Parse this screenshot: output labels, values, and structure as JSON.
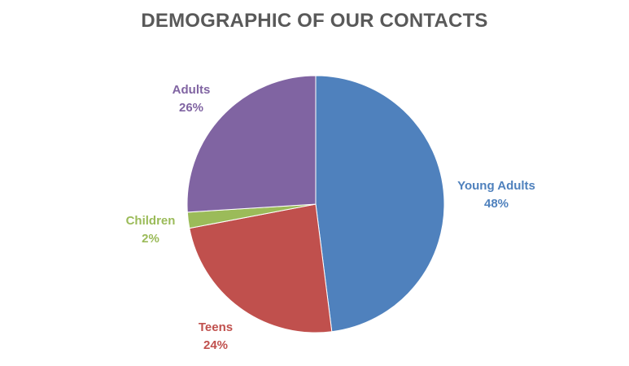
{
  "chart_data": {
    "type": "pie",
    "title": "DEMOGRAPHIC OF OUR CONTACTS",
    "legend": "none",
    "slices": [
      {
        "category": "Young Adults",
        "value": 48,
        "label": "48%",
        "color": "#4F81BD"
      },
      {
        "category": "Teens",
        "value": 24,
        "label": "24%",
        "color": "#C0504D"
      },
      {
        "category": "Children",
        "value": 2,
        "label": "2%",
        "color": "#9BBB59"
      },
      {
        "category": "Adults",
        "value": 26,
        "label": "26%",
        "color": "#8064A2"
      }
    ]
  }
}
